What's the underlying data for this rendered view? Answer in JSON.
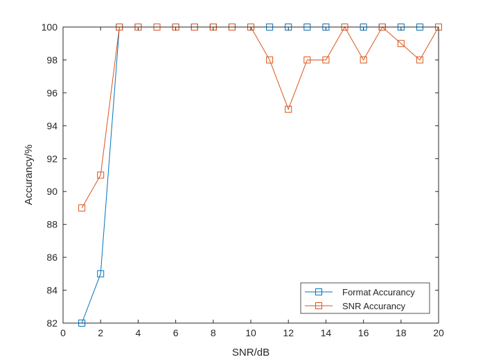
{
  "chart_data": {
    "type": "line",
    "title": "",
    "xlabel": "SNR/dB",
    "ylabel": "Accurancy/%",
    "xlim": [
      0,
      20
    ],
    "ylim": [
      82,
      100
    ],
    "xticks": [
      0,
      2,
      4,
      6,
      8,
      10,
      12,
      14,
      16,
      18,
      20
    ],
    "yticks": [
      82,
      84,
      86,
      88,
      90,
      92,
      94,
      96,
      98,
      100
    ],
    "grid": false,
    "legend_position": "bottom-right",
    "x": [
      1,
      2,
      3,
      4,
      5,
      6,
      7,
      8,
      9,
      10,
      11,
      12,
      13,
      14,
      15,
      16,
      17,
      18,
      19,
      20
    ],
    "series": [
      {
        "name": "Format Accurancy",
        "color": "#0072BD",
        "marker": "square",
        "values": [
          82,
          85,
          100,
          100,
          100,
          100,
          100,
          100,
          100,
          100,
          100,
          100,
          100,
          100,
          100,
          100,
          100,
          100,
          100,
          100
        ]
      },
      {
        "name": "SNR Accurancy",
        "color": "#D95319",
        "marker": "square",
        "values": [
          89,
          91,
          100,
          100,
          100,
          100,
          100,
          100,
          100,
          100,
          98,
          95,
          98,
          98,
          100,
          98,
          100,
          99,
          98,
          100
        ]
      }
    ]
  }
}
